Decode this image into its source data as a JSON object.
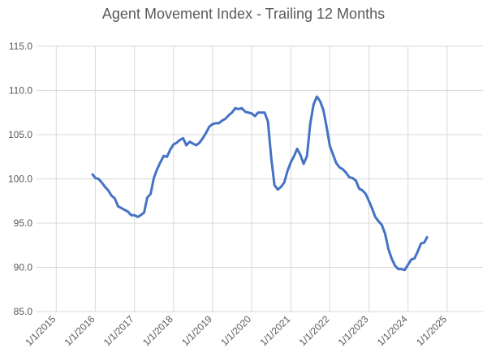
{
  "chart_data": {
    "type": "line",
    "title": "Agent Movement Index - Trailing 12 Months",
    "x": [
      "12/1/2015",
      "1/1/2016",
      "2/1/2016",
      "3/1/2016",
      "4/1/2016",
      "5/1/2016",
      "6/1/2016",
      "7/1/2016",
      "8/1/2016",
      "9/1/2016",
      "10/1/2016",
      "11/1/2016",
      "12/1/2016",
      "1/1/2017",
      "2/1/2017",
      "3/1/2017",
      "4/1/2017",
      "5/1/2017",
      "6/1/2017",
      "7/1/2017",
      "8/1/2017",
      "9/1/2017",
      "10/1/2017",
      "11/1/2017",
      "12/1/2017",
      "1/1/2018",
      "2/1/2018",
      "3/1/2018",
      "4/1/2018",
      "5/1/2018",
      "6/1/2018",
      "7/1/2018",
      "8/1/2018",
      "9/1/2018",
      "10/1/2018",
      "11/1/2018",
      "12/1/2018",
      "1/1/2019",
      "2/1/2019",
      "3/1/2019",
      "4/1/2019",
      "5/1/2019",
      "6/1/2019",
      "7/1/2019",
      "8/1/2019",
      "9/1/2019",
      "10/1/2019",
      "11/1/2019",
      "12/1/2019",
      "1/1/2020",
      "2/1/2020",
      "3/1/2020",
      "4/1/2020",
      "5/1/2020",
      "6/1/2020",
      "7/1/2020",
      "8/1/2020",
      "9/1/2020",
      "10/1/2020",
      "11/1/2020",
      "12/1/2020",
      "1/1/2021",
      "2/1/2021",
      "3/1/2021",
      "4/1/2021",
      "5/1/2021",
      "6/1/2021",
      "7/1/2021",
      "8/1/2021",
      "9/1/2021",
      "10/1/2021",
      "11/1/2021",
      "12/1/2021",
      "1/1/2022",
      "2/1/2022",
      "3/1/2022",
      "4/1/2022",
      "5/1/2022",
      "6/1/2022",
      "7/1/2022",
      "8/1/2022",
      "9/1/2022",
      "10/1/2022",
      "11/1/2022",
      "12/1/2022",
      "1/1/2023",
      "2/1/2023",
      "3/1/2023",
      "4/1/2023",
      "5/1/2023",
      "6/1/2023",
      "7/1/2023",
      "8/1/2023",
      "9/1/2023",
      "10/1/2023",
      "11/1/2023",
      "12/1/2023",
      "1/1/2024",
      "2/1/2024",
      "3/1/2024",
      "4/1/2024",
      "5/1/2024",
      "6/1/2024",
      "7/1/2024"
    ],
    "values": [
      100.6,
      100.1,
      100.0,
      99.6,
      99.1,
      98.7,
      98.1,
      97.8,
      96.9,
      96.7,
      96.5,
      96.3,
      95.9,
      95.9,
      95.7,
      95.9,
      96.2,
      97.9,
      98.3,
      100.1,
      101.1,
      101.9,
      102.6,
      102.5,
      103.3,
      103.9,
      104.1,
      104.4,
      104.6,
      103.8,
      104.2,
      104.0,
      103.8,
      104.1,
      104.6,
      105.2,
      105.9,
      106.2,
      106.3,
      106.3,
      106.6,
      106.8,
      107.2,
      107.5,
      108.0,
      107.9,
      108.0,
      107.6,
      107.5,
      107.4,
      107.1,
      107.5,
      107.5,
      107.5,
      106.5,
      102.5,
      99.3,
      98.8,
      99.1,
      99.6,
      100.9,
      101.9,
      102.6,
      103.4,
      102.7,
      101.7,
      102.6,
      106.2,
      108.4,
      109.3,
      108.8,
      107.8,
      105.9,
      103.7,
      102.7,
      101.8,
      101.3,
      101.1,
      100.7,
      100.2,
      100.1,
      99.8,
      98.9,
      98.7,
      98.3,
      97.5,
      96.6,
      95.7,
      95.2,
      94.8,
      93.8,
      92.1,
      91.0,
      90.2,
      89.8,
      89.8,
      89.7,
      90.3,
      90.9,
      91.0,
      91.8,
      92.7,
      92.8,
      93.5
    ],
    "color": "#4472c4",
    "xlim": [
      "7/1/2014",
      "12/1/2025"
    ],
    "xticks": [
      "1/1/2015",
      "1/1/2016",
      "1/1/2017",
      "1/1/2018",
      "1/1/2019",
      "1/1/2020",
      "1/1/2021",
      "1/1/2022",
      "1/1/2023",
      "1/1/2024",
      "1/1/2025"
    ],
    "ylim": [
      85,
      115
    ],
    "yticks": [
      {
        "value": 85,
        "label": "85.0"
      },
      {
        "value": 90,
        "label": "90.0"
      },
      {
        "value": 95,
        "label": "95.0"
      },
      {
        "value": 100,
        "label": "100.0"
      },
      {
        "value": 105,
        "label": "105.0"
      },
      {
        "value": 110,
        "label": "110.0"
      },
      {
        "value": 115,
        "label": "115.0"
      }
    ],
    "grid": true
  }
}
